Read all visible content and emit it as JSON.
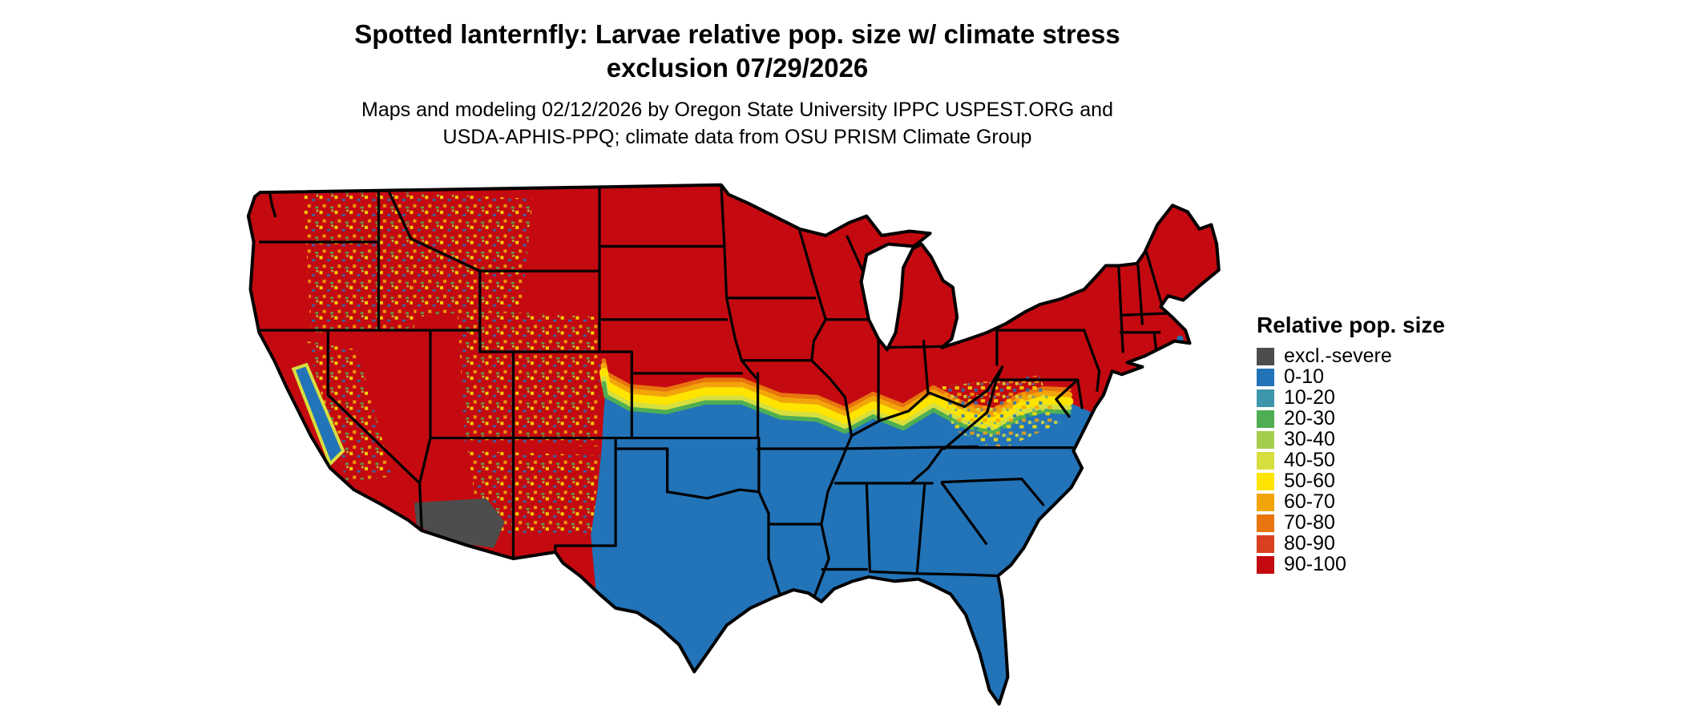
{
  "header": {
    "title_line1": "Spotted lanternfly: Larvae relative pop. size w/ climate stress",
    "title_line2": "exclusion 07/29/2026",
    "subtitle_line1": "Maps and modeling 02/12/2026 by Oregon State University IPPC USPEST.ORG and",
    "subtitle_line2": "USDA-APHIS-PPQ; climate data from OSU PRISM Climate Group"
  },
  "legend": {
    "title": "Relative pop. size",
    "items": [
      {
        "label": "excl.-severe",
        "color": "#4d4d4d"
      },
      {
        "label": "0-10",
        "color": "#2273b8"
      },
      {
        "label": "10-20",
        "color": "#3e96ab"
      },
      {
        "label": "20-30",
        "color": "#4fae53"
      },
      {
        "label": "30-40",
        "color": "#a6ce4e"
      },
      {
        "label": "40-50",
        "color": "#d6df3f"
      },
      {
        "label": "50-60",
        "color": "#ffe400"
      },
      {
        "label": "60-70",
        "color": "#f2a50a"
      },
      {
        "label": "70-80",
        "color": "#e8750e"
      },
      {
        "label": "80-90",
        "color": "#d9401f"
      },
      {
        "label": "90-100",
        "color": "#c40a10"
      }
    ]
  },
  "map": {
    "description": "Continental United States raster map: high relative population (90-100, red) across the northern states, low (0-10, blue) across the southern states, a yellow-orange-green transition band through the central US and mid-Atlantic, mottled mountain-west pixels, and an excluded-severe (gray) zone in southern Arizona."
  }
}
